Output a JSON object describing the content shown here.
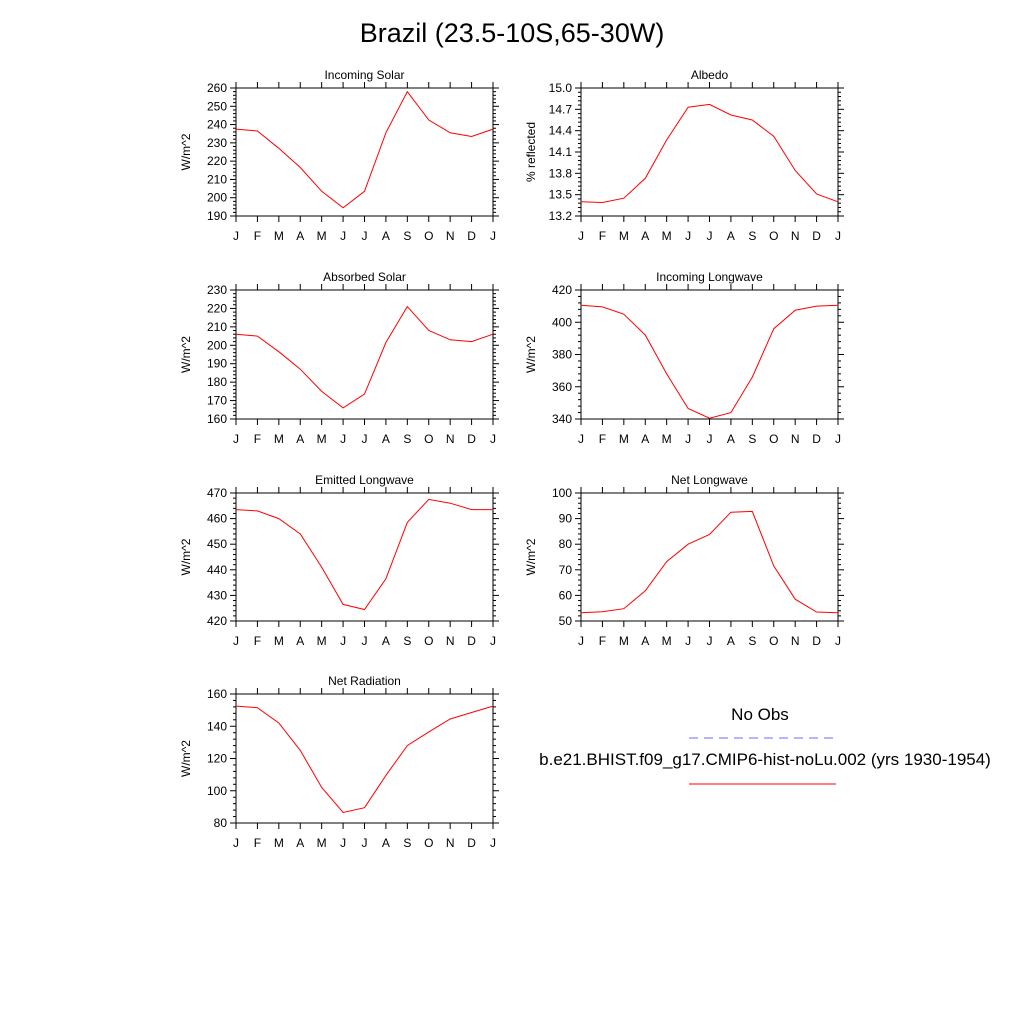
{
  "title": "Brazil (23.5-10S,65-30W)",
  "legend": {
    "obs_label": "No Obs",
    "obs_color": "#6a6aff",
    "model_label": "b.e21.BHIST.f09_g17.CMIP6-hist-noLu.002 (yrs 1930-1954)",
    "model_color": "#ff0000"
  },
  "chart_data": [
    {
      "type": "line",
      "title": "Incoming Solar",
      "ylabel": "W/m^2",
      "ylim": [
        190,
        260
      ],
      "yticks": [
        "190",
        "200",
        "210",
        "220",
        "230",
        "240",
        "250",
        "260"
      ],
      "categories": [
        "J",
        "F",
        "M",
        "A",
        "M",
        "J",
        "J",
        "A",
        "S",
        "O",
        "N",
        "D",
        "J"
      ],
      "series": [
        {
          "values": [
            237.5,
            236.5,
            227,
            216.5,
            203.5,
            194.5,
            203.5,
            235.5,
            258,
            242.5,
            235.5,
            233.5,
            237.5
          ]
        }
      ]
    },
    {
      "type": "line",
      "title": "Albedo",
      "ylabel": "% reflected",
      "ylim": [
        13.2,
        15.0
      ],
      "yticks": [
        "13.2",
        "13.5",
        "13.8",
        "14.1",
        "14.4",
        "14.7",
        "15.0"
      ],
      "categories": [
        "J",
        "F",
        "M",
        "A",
        "M",
        "J",
        "J",
        "A",
        "S",
        "O",
        "N",
        "D",
        "J"
      ],
      "series": [
        {
          "values": [
            13.4,
            13.39,
            13.45,
            13.73,
            14.27,
            14.73,
            14.77,
            14.62,
            14.55,
            14.32,
            13.84,
            13.51,
            13.4
          ]
        }
      ]
    },
    {
      "type": "line",
      "title": "Absorbed Solar",
      "ylabel": "W/m^2",
      "ylim": [
        160,
        230
      ],
      "yticks": [
        "160",
        "170",
        "180",
        "190",
        "200",
        "210",
        "220",
        "230"
      ],
      "categories": [
        "J",
        "F",
        "M",
        "A",
        "M",
        "J",
        "J",
        "A",
        "S",
        "O",
        "N",
        "D",
        "J"
      ],
      "series": [
        {
          "values": [
            206,
            205,
            196.5,
            187,
            175,
            166,
            173.5,
            201.5,
            221,
            208,
            203,
            202,
            206
          ]
        }
      ]
    },
    {
      "type": "line",
      "title": "Incoming Longwave",
      "ylabel": "W/m^2",
      "ylim": [
        340,
        420
      ],
      "yticks": [
        "340",
        "360",
        "380",
        "400",
        "420"
      ],
      "categories": [
        "J",
        "F",
        "M",
        "A",
        "M",
        "J",
        "J",
        "A",
        "S",
        "O",
        "N",
        "D",
        "J"
      ],
      "series": [
        {
          "values": [
            410.5,
            409.5,
            405,
            392,
            368,
            346.5,
            340.5,
            344,
            366,
            396,
            407.5,
            410,
            410.5
          ]
        }
      ]
    },
    {
      "type": "line",
      "title": "Emitted Longwave",
      "ylabel": "W/m^2",
      "ylim": [
        420,
        470
      ],
      "yticks": [
        "420",
        "430",
        "440",
        "450",
        "460",
        "470"
      ],
      "categories": [
        "J",
        "F",
        "M",
        "A",
        "M",
        "J",
        "J",
        "A",
        "S",
        "O",
        "N",
        "D",
        "J"
      ],
      "series": [
        {
          "values": [
            463.5,
            463,
            460,
            454,
            441,
            426.5,
            424.5,
            436.5,
            458.5,
            467.5,
            466,
            463.5,
            463.5
          ]
        }
      ]
    },
    {
      "type": "line",
      "title": "Net Longwave",
      "ylabel": "W/m^2",
      "ylim": [
        50,
        100
      ],
      "yticks": [
        "50",
        "60",
        "70",
        "80",
        "90",
        "100"
      ],
      "categories": [
        "J",
        "F",
        "M",
        "A",
        "M",
        "J",
        "J",
        "A",
        "S",
        "O",
        "N",
        "D",
        "J"
      ],
      "series": [
        {
          "values": [
            53.2,
            53.6,
            54.8,
            61.8,
            73.2,
            80,
            83.8,
            92.5,
            92.8,
            71.5,
            58.5,
            53.5,
            53.2
          ]
        }
      ]
    },
    {
      "type": "line",
      "title": "Net Radiation",
      "ylabel": "W/m^2",
      "ylim": [
        80,
        160
      ],
      "yticks": [
        "80",
        "100",
        "120",
        "140",
        "160"
      ],
      "categories": [
        "J",
        "F",
        "M",
        "A",
        "M",
        "J",
        "J",
        "A",
        "S",
        "O",
        "N",
        "D",
        "J"
      ],
      "series": [
        {
          "values": [
            152.5,
            151.5,
            142,
            125,
            102,
            86.5,
            89.5,
            109.5,
            128,
            136.5,
            144.5,
            148.5,
            152.5
          ]
        }
      ]
    }
  ]
}
